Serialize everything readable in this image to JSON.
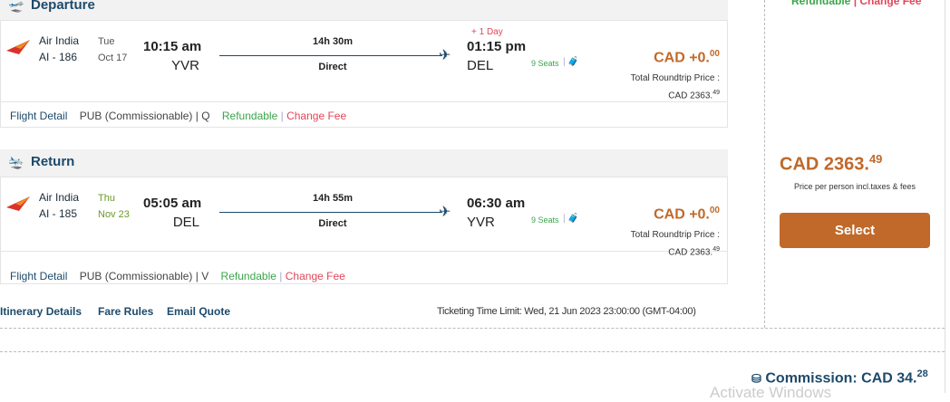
{
  "top_right": {
    "refundable": "Refundable",
    "sep": "|",
    "change_fee": "Change Fee"
  },
  "legs": [
    {
      "title": "Departure",
      "airline": "Air India",
      "flight": "AI - 186",
      "day": "Tue",
      "date": "Oct 17",
      "dep_time": "10:15 am",
      "dep_code": "YVR",
      "duration": "14h 30m",
      "stops": "Direct",
      "day_offset": "+ 1 Day",
      "arr_time": "01:15 pm",
      "arr_code": "DEL",
      "seats": "9 Seats",
      "price_main": "CAD +0.",
      "price_cents": "00",
      "total_label": "Total Roundtrip Price :",
      "total_main": "CAD 2363.",
      "total_cents": "49",
      "detail": "Flight Detail",
      "fare": "PUB (Commissionable) | Q",
      "refundable": "Refundable",
      "change_fee": "Change Fee"
    },
    {
      "title": "Return",
      "airline": "Air India",
      "flight": "AI - 185",
      "day": "Thu",
      "date": "Nov 23",
      "dep_time": "05:05 am",
      "dep_code": "DEL",
      "duration": "14h 55m",
      "stops": "Direct",
      "day_offset": "",
      "arr_time": "06:30 am",
      "arr_code": "YVR",
      "seats": "9 Seats",
      "price_main": "CAD +0.",
      "price_cents": "00",
      "total_label": "Total Roundtrip Price :",
      "total_main": "CAD 2363.",
      "total_cents": "49",
      "detail": "Flight Detail",
      "fare": "PUB (Commissionable) | V",
      "refundable": "Refundable",
      "change_fee": "Change Fee"
    }
  ],
  "summary": {
    "price_main": "CAD 2363.",
    "price_cents": "49",
    "note": "Price per person incl.taxes & fees",
    "select": "Select"
  },
  "links": {
    "itinerary": "Itinerary Details",
    "fare_rules": "Fare Rules",
    "email": "Email Quote"
  },
  "ticketing": "Ticketing Time Limit: Wed, 21 Jun 2023 23:00:00 (GMT-04:00)",
  "commission": {
    "label": "Commission: CAD 34.",
    "cents": "28"
  },
  "watermark": "Activate Windows",
  "colors": {
    "brand": "#1d4a6b",
    "price": "#c0692a",
    "green": "#3aa54a",
    "red": "#e0475a"
  }
}
